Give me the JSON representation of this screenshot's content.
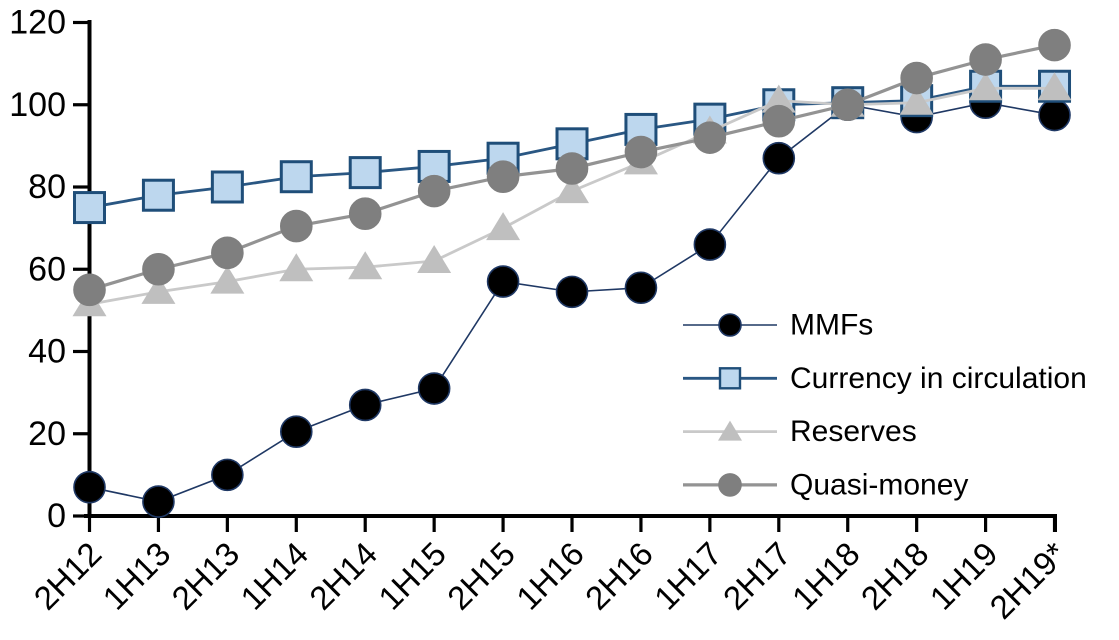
{
  "chart_data": {
    "type": "line",
    "title": "",
    "xlabel": "",
    "ylabel": "",
    "grid": false,
    "legend_position": "inside-right",
    "axis_color": "#000000",
    "categories": [
      "2H12",
      "1H13",
      "2H13",
      "1H14",
      "2H14",
      "1H15",
      "2H15",
      "1H16",
      "2H16",
      "1H17",
      "2H17",
      "1H18",
      "2H18",
      "1H19",
      "2H19*"
    ],
    "y_axis": {
      "min": 0,
      "max": 120,
      "step": 20,
      "tick_labels": [
        "0",
        "20",
        "40",
        "60",
        "80",
        "100",
        "120"
      ]
    },
    "series": [
      {
        "name": "MMFs",
        "marker": "circle",
        "marker_color": "#000000",
        "marker_stroke": "#1f3864",
        "line_color": "#1f3864",
        "line_width": 1.6,
        "values": [
          7,
          3.5,
          10,
          20.5,
          27,
          31,
          57,
          54.5,
          55.5,
          66,
          87,
          100,
          97,
          100.5,
          97.5
        ]
      },
      {
        "name": "Currency in circulation",
        "marker": "square",
        "marker_color": "#bdd7ee",
        "marker_stroke": "#1f4e79",
        "line_color": "#2a5783",
        "line_width": 2.8,
        "values": [
          75,
          78,
          80,
          82.5,
          83.5,
          85,
          87,
          90.5,
          94,
          96.5,
          100,
          100.5,
          101,
          104.5,
          104.5
        ]
      },
      {
        "name": "Reserves",
        "marker": "triangle",
        "marker_color": "#bfbfbf",
        "marker_stroke": "#c6c6c6",
        "line_color": "#c9c9c9",
        "line_width": 2.8,
        "values": [
          51.5,
          54.5,
          57,
          60,
          60.5,
          62,
          70,
          79,
          86,
          93.5,
          101,
          100,
          100.5,
          104,
          104
        ]
      },
      {
        "name": "Quasi-money",
        "marker": "circle",
        "marker_color": "#7f7f7f",
        "marker_stroke": "#7f7f7f",
        "line_color": "#939393",
        "line_width": 3.2,
        "values": [
          55,
          60,
          64,
          70.5,
          73.5,
          79,
          82.5,
          84.5,
          88.5,
          92,
          96,
          100,
          106.5,
          111,
          114.5
        ]
      }
    ]
  }
}
